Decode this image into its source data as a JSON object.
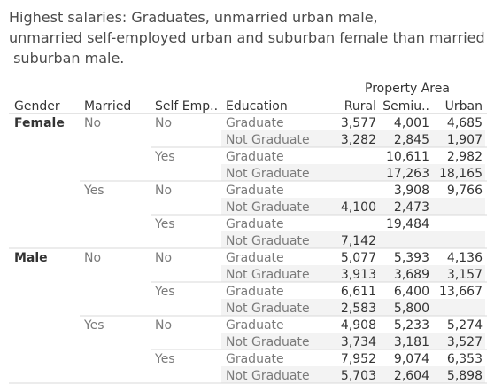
{
  "title_lines": [
    "Highest salaries: Graduates, unmarried urban male,",
    "unmarried self-employed urban and suburban female than married",
    " suburban male."
  ],
  "colors": {
    "band": "#f3f3f3",
    "rule": "#d8d8d8",
    "text": "#333333"
  },
  "chart_data": {
    "type": "table",
    "column_group_header": "Property Area",
    "row_headers": [
      "Gender",
      "Married",
      "Self Emp..",
      "Education"
    ],
    "columns": [
      "Rural",
      "Semiu..",
      "Urban"
    ],
    "rows": [
      {
        "gender": "Female",
        "married": "No",
        "self_employed": "No",
        "education": "Graduate",
        "values": [
          "3,577",
          "4,001",
          "4,685"
        ]
      },
      {
        "gender": "Female",
        "married": "No",
        "self_employed": "No",
        "education": "Not Graduate",
        "values": [
          "3,282",
          "2,845",
          "1,907"
        ]
      },
      {
        "gender": "Female",
        "married": "No",
        "self_employed": "Yes",
        "education": "Graduate",
        "values": [
          "",
          "10,611",
          "2,982"
        ]
      },
      {
        "gender": "Female",
        "married": "No",
        "self_employed": "Yes",
        "education": "Not Graduate",
        "values": [
          "",
          "17,263",
          "18,165"
        ]
      },
      {
        "gender": "Female",
        "married": "Yes",
        "self_employed": "No",
        "education": "Graduate",
        "values": [
          "",
          "3,908",
          "9,766"
        ]
      },
      {
        "gender": "Female",
        "married": "Yes",
        "self_employed": "No",
        "education": "Not Graduate",
        "values": [
          "4,100",
          "2,473",
          ""
        ]
      },
      {
        "gender": "Female",
        "married": "Yes",
        "self_employed": "Yes",
        "education": "Graduate",
        "values": [
          "",
          "19,484",
          ""
        ]
      },
      {
        "gender": "Female",
        "married": "Yes",
        "self_employed": "Yes",
        "education": "Not Graduate",
        "values": [
          "7,142",
          "",
          ""
        ]
      },
      {
        "gender": "Male",
        "married": "No",
        "self_employed": "No",
        "education": "Graduate",
        "values": [
          "5,077",
          "5,393",
          "4,136"
        ]
      },
      {
        "gender": "Male",
        "married": "No",
        "self_employed": "No",
        "education": "Not Graduate",
        "values": [
          "3,913",
          "3,689",
          "3,157"
        ]
      },
      {
        "gender": "Male",
        "married": "No",
        "self_employed": "Yes",
        "education": "Graduate",
        "values": [
          "6,611",
          "6,400",
          "13,667"
        ]
      },
      {
        "gender": "Male",
        "married": "No",
        "self_employed": "Yes",
        "education": "Not Graduate",
        "values": [
          "2,583",
          "5,800",
          ""
        ]
      },
      {
        "gender": "Male",
        "married": "Yes",
        "self_employed": "No",
        "education": "Graduate",
        "values": [
          "4,908",
          "5,233",
          "5,274"
        ]
      },
      {
        "gender": "Male",
        "married": "Yes",
        "self_employed": "No",
        "education": "Not Graduate",
        "values": [
          "3,734",
          "3,181",
          "3,527"
        ]
      },
      {
        "gender": "Male",
        "married": "Yes",
        "self_employed": "Yes",
        "education": "Graduate",
        "values": [
          "7,952",
          "9,074",
          "6,353"
        ]
      },
      {
        "gender": "Male",
        "married": "Yes",
        "self_employed": "Yes",
        "education": "Not Graduate",
        "values": [
          "5,703",
          "2,604",
          "5,898"
        ]
      }
    ]
  }
}
